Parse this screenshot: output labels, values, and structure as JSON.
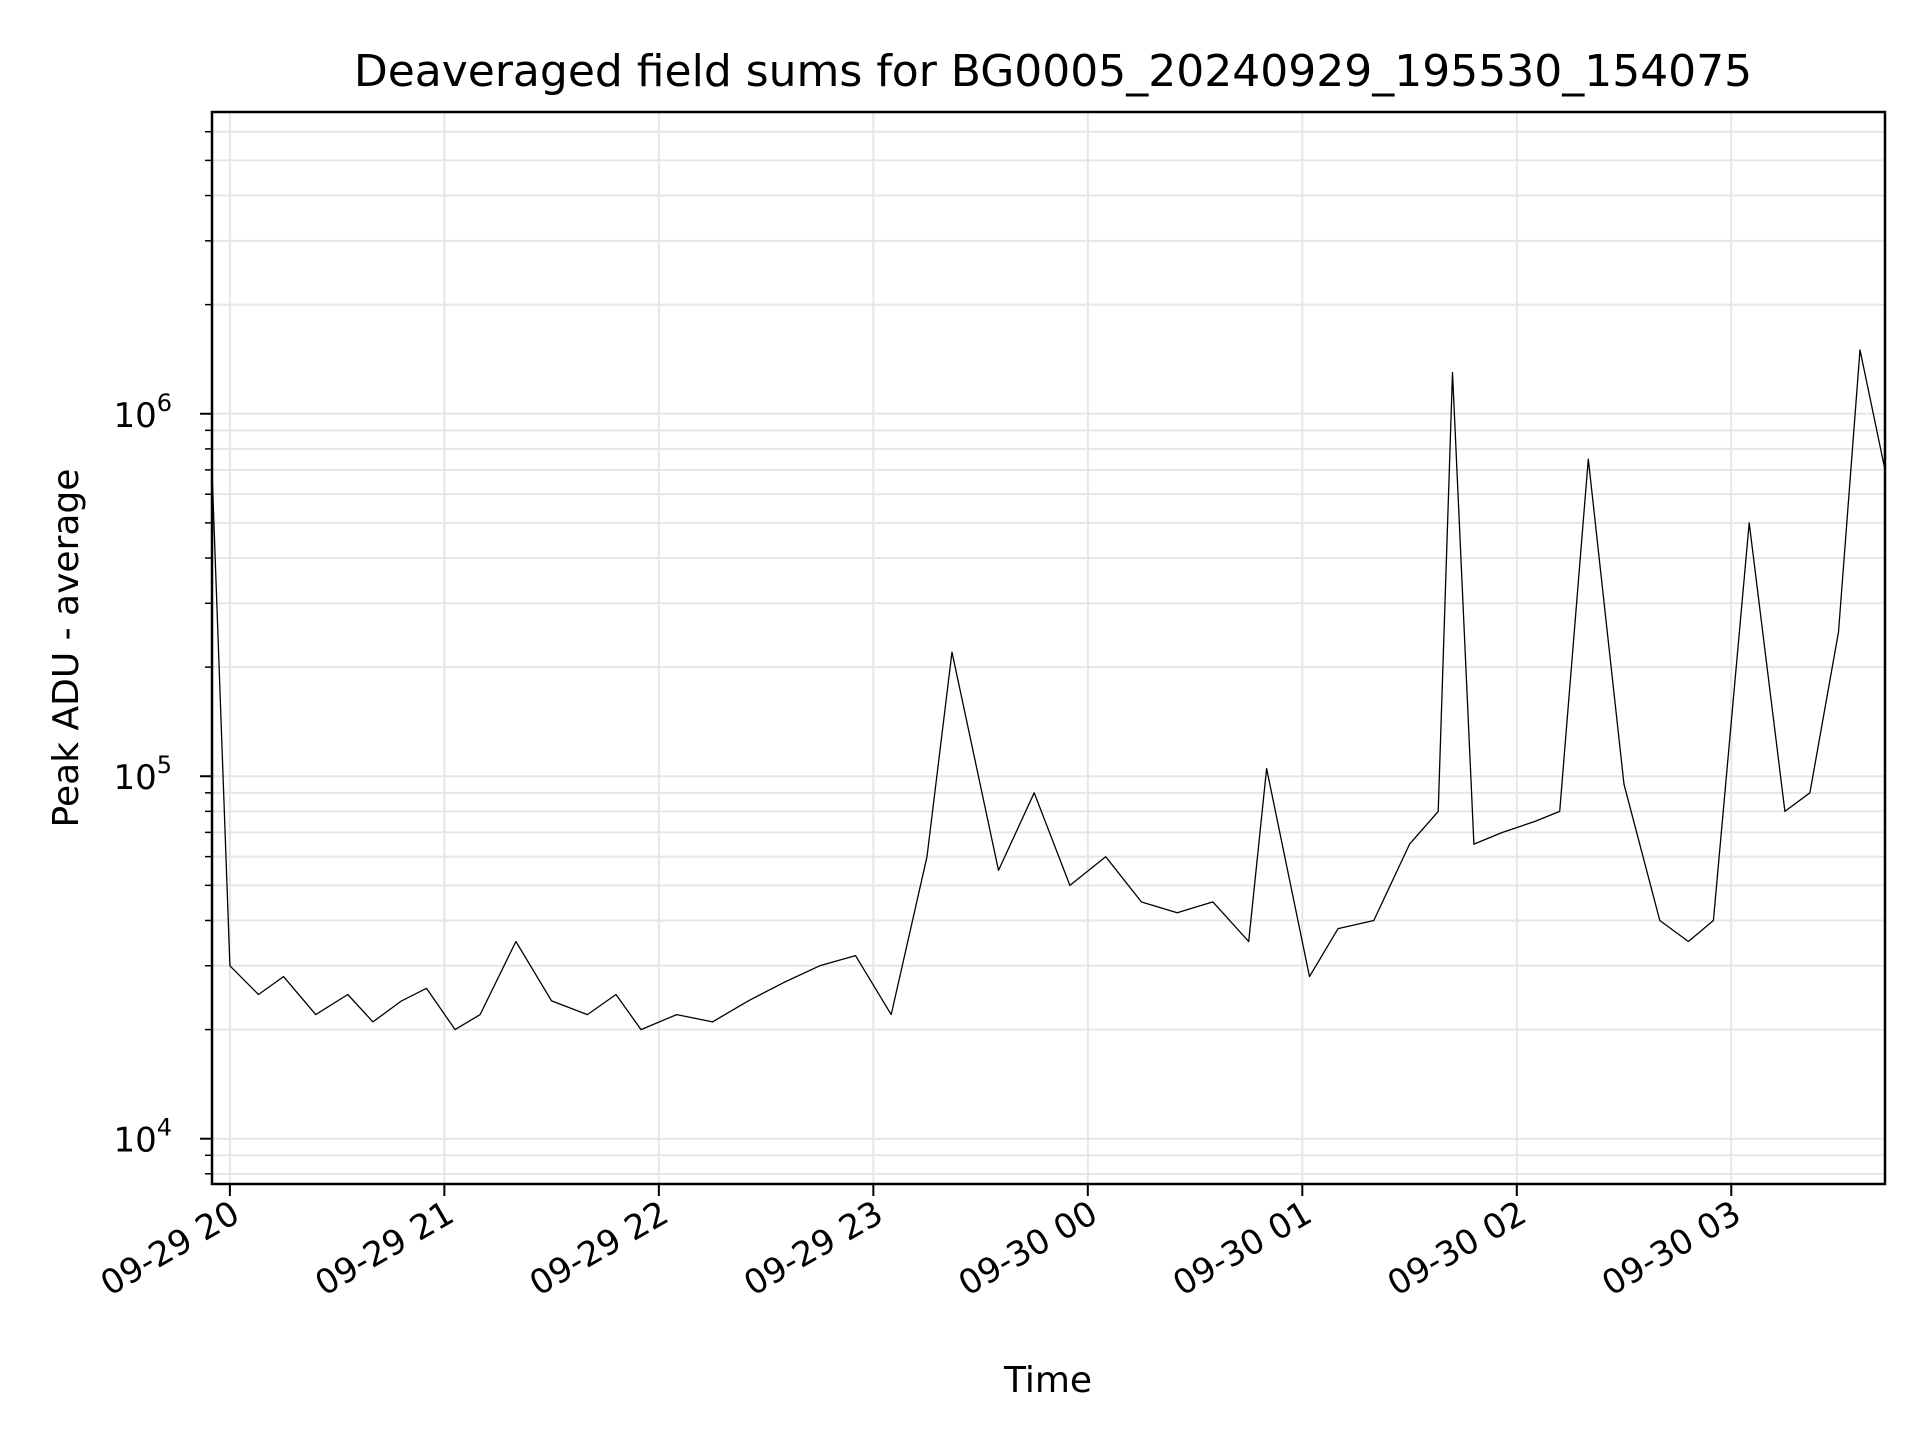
{
  "chart_data": {
    "type": "line",
    "title": "Deaveraged field sums for BG0005_20240929_195530_154075",
    "xlabel": "Time",
    "ylabel": "Peak ADU - average",
    "yscale": "log",
    "ylim": [
      7500,
      6800000
    ],
    "xlim": [
      "2024-09-29 19:55",
      "2024-09-30 03:43"
    ],
    "grid": true,
    "line_color": "#000000",
    "x_ticks": [
      {
        "label": "09-29 20",
        "time": "2024-09-29 20:00"
      },
      {
        "label": "09-29 21",
        "time": "2024-09-29 21:00"
      },
      {
        "label": "09-29 22",
        "time": "2024-09-29 22:00"
      },
      {
        "label": "09-29 23",
        "time": "2024-09-29 23:00"
      },
      {
        "label": "09-30 00",
        "time": "2024-09-30 00:00"
      },
      {
        "label": "09-30 01",
        "time": "2024-09-30 01:00"
      },
      {
        "label": "09-30 02",
        "time": "2024-09-30 02:00"
      },
      {
        "label": "09-30 03",
        "time": "2024-09-30 03:00"
      }
    ],
    "y_ticks": [
      {
        "base": "10",
        "exp": "4",
        "value": 10000
      },
      {
        "base": "10",
        "exp": "5",
        "value": 100000
      },
      {
        "base": "10",
        "exp": "6",
        "value": 1000000
      }
    ],
    "series": [
      {
        "x": [
          "2024-09-29 19:55",
          "2024-09-29 20:00",
          "2024-09-29 20:08",
          "2024-09-29 20:15",
          "2024-09-29 20:24",
          "2024-09-29 20:33",
          "2024-09-29 20:40",
          "2024-09-29 20:48",
          "2024-09-29 20:55",
          "2024-09-29 21:03",
          "2024-09-29 21:10",
          "2024-09-29 21:20",
          "2024-09-29 21:30",
          "2024-09-29 21:40",
          "2024-09-29 21:48",
          "2024-09-29 21:55",
          "2024-09-29 22:05",
          "2024-09-29 22:15",
          "2024-09-29 22:25",
          "2024-09-29 22:35",
          "2024-09-29 22:45",
          "2024-09-29 22:55",
          "2024-09-29 23:05",
          "2024-09-29 23:15",
          "2024-09-29 23:22",
          "2024-09-29 23:35",
          "2024-09-29 23:45",
          "2024-09-29 23:55",
          "2024-09-30 00:05",
          "2024-09-30 00:15",
          "2024-09-30 00:25",
          "2024-09-30 00:35",
          "2024-09-30 00:45",
          "2024-09-30 00:50",
          "2024-09-30 01:02",
          "2024-09-30 01:10",
          "2024-09-30 01:20",
          "2024-09-30 01:30",
          "2024-09-30 01:38",
          "2024-09-30 01:42",
          "2024-09-30 01:48",
          "2024-09-30 01:56",
          "2024-09-30 02:05",
          "2024-09-30 02:12",
          "2024-09-30 02:20",
          "2024-09-30 02:30",
          "2024-09-30 02:40",
          "2024-09-30 02:48",
          "2024-09-30 02:55",
          "2024-09-30 03:05",
          "2024-09-30 03:15",
          "2024-09-30 03:22",
          "2024-09-30 03:30",
          "2024-09-30 03:36",
          "2024-09-30 03:43"
        ],
        "y": [
          700000,
          30000,
          25000,
          28000,
          22000,
          25000,
          21000,
          24000,
          26000,
          20000,
          22000,
          35000,
          24000,
          22000,
          25000,
          20000,
          22000,
          21000,
          24000,
          27000,
          30000,
          32000,
          22000,
          60000,
          220000,
          55000,
          90000,
          50000,
          60000,
          45000,
          42000,
          45000,
          35000,
          105000,
          28000,
          38000,
          40000,
          65000,
          80000,
          1300000,
          65000,
          70000,
          75000,
          80000,
          750000,
          95000,
          40000,
          35000,
          40000,
          500000,
          80000,
          90000,
          250000,
          1500000,
          700000
        ]
      }
    ]
  }
}
